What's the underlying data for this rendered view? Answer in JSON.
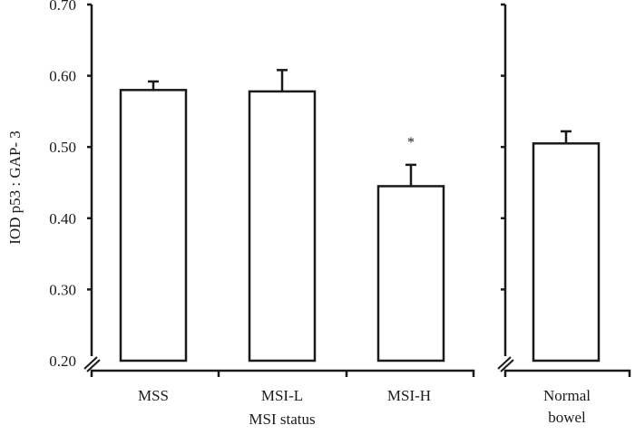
{
  "chart_data": {
    "type": "bar",
    "title": "",
    "ylabel": "IOD p53 : GAP- 3",
    "xlabel": "MSI status",
    "ylim": [
      0.2,
      0.7
    ],
    "yticks": [
      "0.70",
      "0.60",
      "0.50",
      "0.40",
      "0.30",
      "0.20"
    ],
    "categories": [
      "MSS",
      "MSI-L",
      "MSI-H",
      "Normal bowel"
    ],
    "values": [
      0.58,
      0.578,
      0.445,
      0.505
    ],
    "errors": [
      0.012,
      0.03,
      0.03,
      0.017
    ],
    "annotations": [
      {
        "category": "MSI-H",
        "text": "*"
      }
    ],
    "groups": [
      {
        "label": "MSI status",
        "categories": [
          "MSS",
          "MSI-L",
          "MSI-H"
        ]
      },
      {
        "label": "",
        "categories": [
          "Normal bowel"
        ]
      }
    ],
    "grid": false,
    "legend": null,
    "axis_break": true
  },
  "labels": {
    "ylabel": "IOD p53 : GAP- 3",
    "group_label": "MSI status",
    "cat_mss": "MSS",
    "cat_msil": "MSI-L",
    "cat_msih": "MSI-H",
    "cat_normal_1": "Normal",
    "cat_normal_2": "bowel",
    "sig_marker": "*",
    "ticks": [
      "0.70",
      "0.60",
      "0.50",
      "0.40",
      "0.30",
      "0.20"
    ]
  }
}
